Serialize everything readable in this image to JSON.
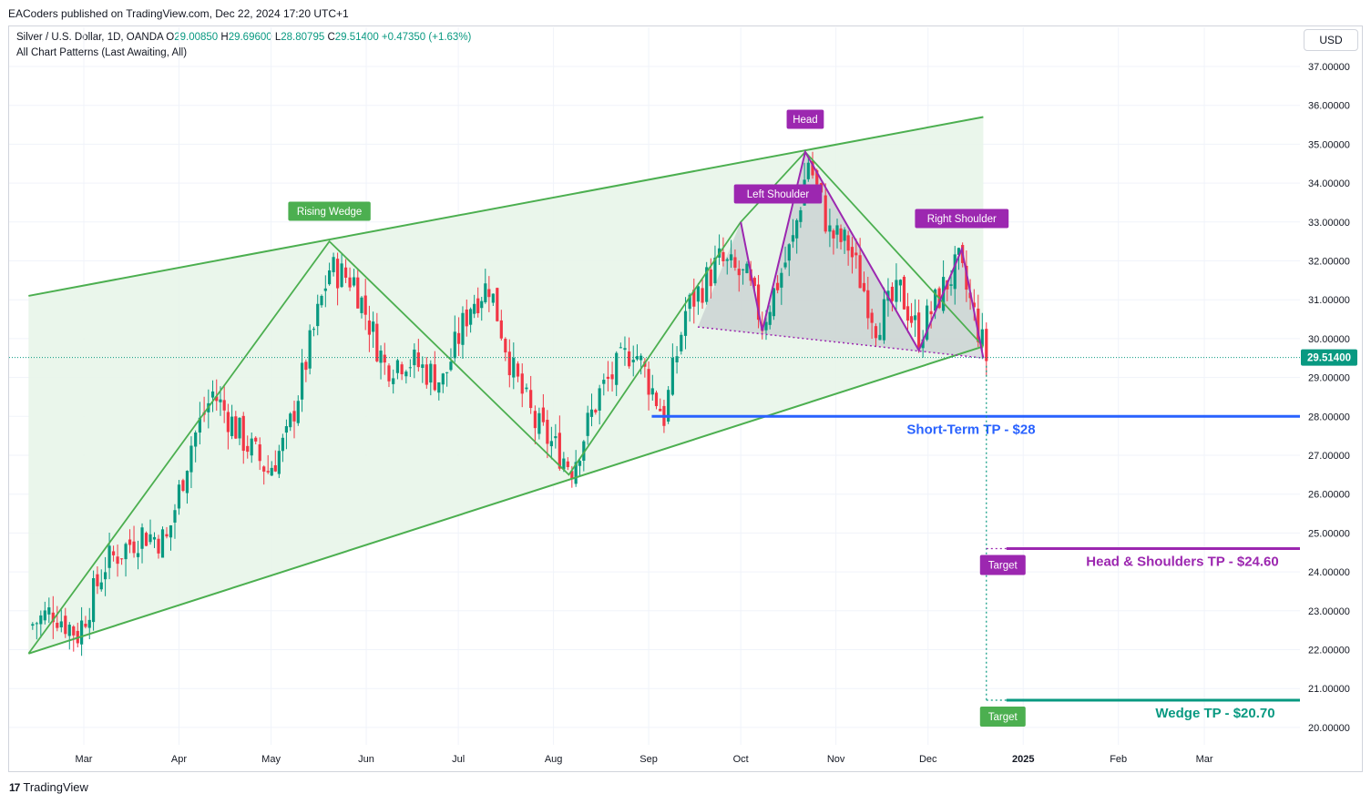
{
  "publisher": "EACoders published on TradingView.com, Dec 22, 2024 17:20 UTC+1",
  "symbol_line": {
    "name": "Silver / U.S. Dollar, 1D, OANDA",
    "open_k": "O",
    "open": "29.00850",
    "high_k": "H",
    "high": "29.69600",
    "low_k": "L",
    "low": "28.80795",
    "close_k": "C",
    "close": "29.51400",
    "change": "+0.47350 (+1.63%)"
  },
  "indicator_line": "All Chart Patterns (Last Awaiting, All)",
  "currency": "USD",
  "footer": {
    "logo": "17",
    "brand": "TradingView"
  },
  "colors": {
    "up": "#089981",
    "down": "#f23645",
    "wedge": "#4caf50",
    "wedge_fill": "#e8f5e9",
    "hs": "#9c27b0",
    "short_tp": "#2962ff",
    "wedge_tp": "#089981",
    "grid": "#f0f3fa"
  },
  "chart_data": {
    "type": "candlestick",
    "y_axis": {
      "ticks": [
        "37.00000",
        "36.00000",
        "35.00000",
        "34.00000",
        "33.00000",
        "32.00000",
        "31.00000",
        "30.00000",
        "29.00000",
        "28.00000",
        "27.00000",
        "26.00000",
        "25.00000",
        "24.00000",
        "23.00000",
        "22.00000",
        "21.00000",
        "20.00000"
      ],
      "range": [
        19.7,
        37.6
      ],
      "current_price": "29.51400"
    },
    "x_axis": {
      "ticks": [
        "Mar",
        "Apr",
        "May",
        "Jun",
        "Jul",
        "Aug",
        "Sep",
        "Oct",
        "Nov",
        "Dec",
        "2025",
        "Feb",
        "Mar"
      ],
      "bold_tick": "2025"
    },
    "price_path": [
      [
        "2024-02-12",
        22.6
      ],
      [
        "2024-02-20",
        23.0
      ],
      [
        "2024-02-28",
        22.4
      ],
      [
        "2024-03-08",
        24.2
      ],
      [
        "2024-03-20",
        25.0
      ],
      [
        "2024-03-28",
        24.8
      ],
      [
        "2024-04-05",
        27.3
      ],
      [
        "2024-04-12",
        28.6
      ],
      [
        "2024-04-22",
        27.4
      ],
      [
        "2024-04-30",
        26.6
      ],
      [
        "2024-05-06",
        27.4
      ],
      [
        "2024-05-20",
        31.8
      ],
      [
        "2024-05-28",
        31.5
      ],
      [
        "2024-06-07",
        29.3
      ],
      [
        "2024-06-14",
        29.5
      ],
      [
        "2024-06-26",
        28.9
      ],
      [
        "2024-07-05",
        30.9
      ],
      [
        "2024-07-11",
        31.4
      ],
      [
        "2024-07-19",
        29.1
      ],
      [
        "2024-07-26",
        27.8
      ],
      [
        "2024-08-07",
        26.7
      ],
      [
        "2024-08-16",
        28.6
      ],
      [
        "2024-08-27",
        29.8
      ],
      [
        "2024-09-06",
        28.0
      ],
      [
        "2024-09-13",
        30.7
      ],
      [
        "2024-09-24",
        32.0
      ],
      [
        "2024-10-03",
        31.5
      ],
      [
        "2024-10-08",
        30.4
      ],
      [
        "2024-10-18",
        32.5
      ],
      [
        "2024-10-23",
        34.6
      ],
      [
        "2024-10-30",
        32.7
      ],
      [
        "2024-11-05",
        32.4
      ],
      [
        "2024-11-14",
        30.4
      ],
      [
        "2024-11-22",
        31.2
      ],
      [
        "2024-11-28",
        30.1
      ],
      [
        "2024-12-06",
        31.3
      ],
      [
        "2024-12-11",
        31.9
      ],
      [
        "2024-12-16",
        30.6
      ],
      [
        "2024-12-20",
        29.51
      ]
    ],
    "patterns": {
      "rising_wedge": {
        "label": "Rising Wedge",
        "upper_line": [
          [
            "2024-02-12",
            31.1
          ],
          [
            "2024-12-19",
            35.7
          ]
        ],
        "lower_line": [
          [
            "2024-02-12",
            21.9
          ],
          [
            "2024-12-19",
            29.8
          ]
        ],
        "zigzag": [
          [
            "2024-02-12",
            21.9
          ],
          [
            "2024-05-20",
            32.5
          ],
          [
            "2024-08-06",
            26.5
          ],
          [
            "2024-10-01",
            33.0
          ],
          [
            "2024-10-22",
            34.8
          ],
          [
            "2024-12-19",
            29.8
          ]
        ]
      },
      "head_and_shoulders": {
        "labels": {
          "left": "Left Shoulder",
          "head": "Head",
          "right": "Right Shoulder"
        },
        "points": [
          [
            "2024-10-01",
            33.0
          ],
          [
            "2024-10-08",
            30.2
          ],
          [
            "2024-10-22",
            34.8
          ],
          [
            "2024-11-28",
            29.7
          ],
          [
            "2024-12-12",
            32.3
          ],
          [
            "2024-12-19",
            29.5
          ]
        ],
        "neckline": [
          [
            "2024-09-17",
            30.3
          ],
          [
            "2024-12-19",
            29.5
          ]
        ]
      }
    },
    "levels": [
      {
        "label": "Short-Term TP - $28",
        "value": 28.0,
        "from": "2024-09-02"
      },
      {
        "label": "Head & Shoulders TP - $24.60",
        "value": 24.6,
        "from": "2024-12-20",
        "tag": "Target"
      },
      {
        "label": "Wedge TP - $20.70",
        "value": 20.7,
        "from": "2024-12-20",
        "tag": "Target"
      }
    ]
  }
}
